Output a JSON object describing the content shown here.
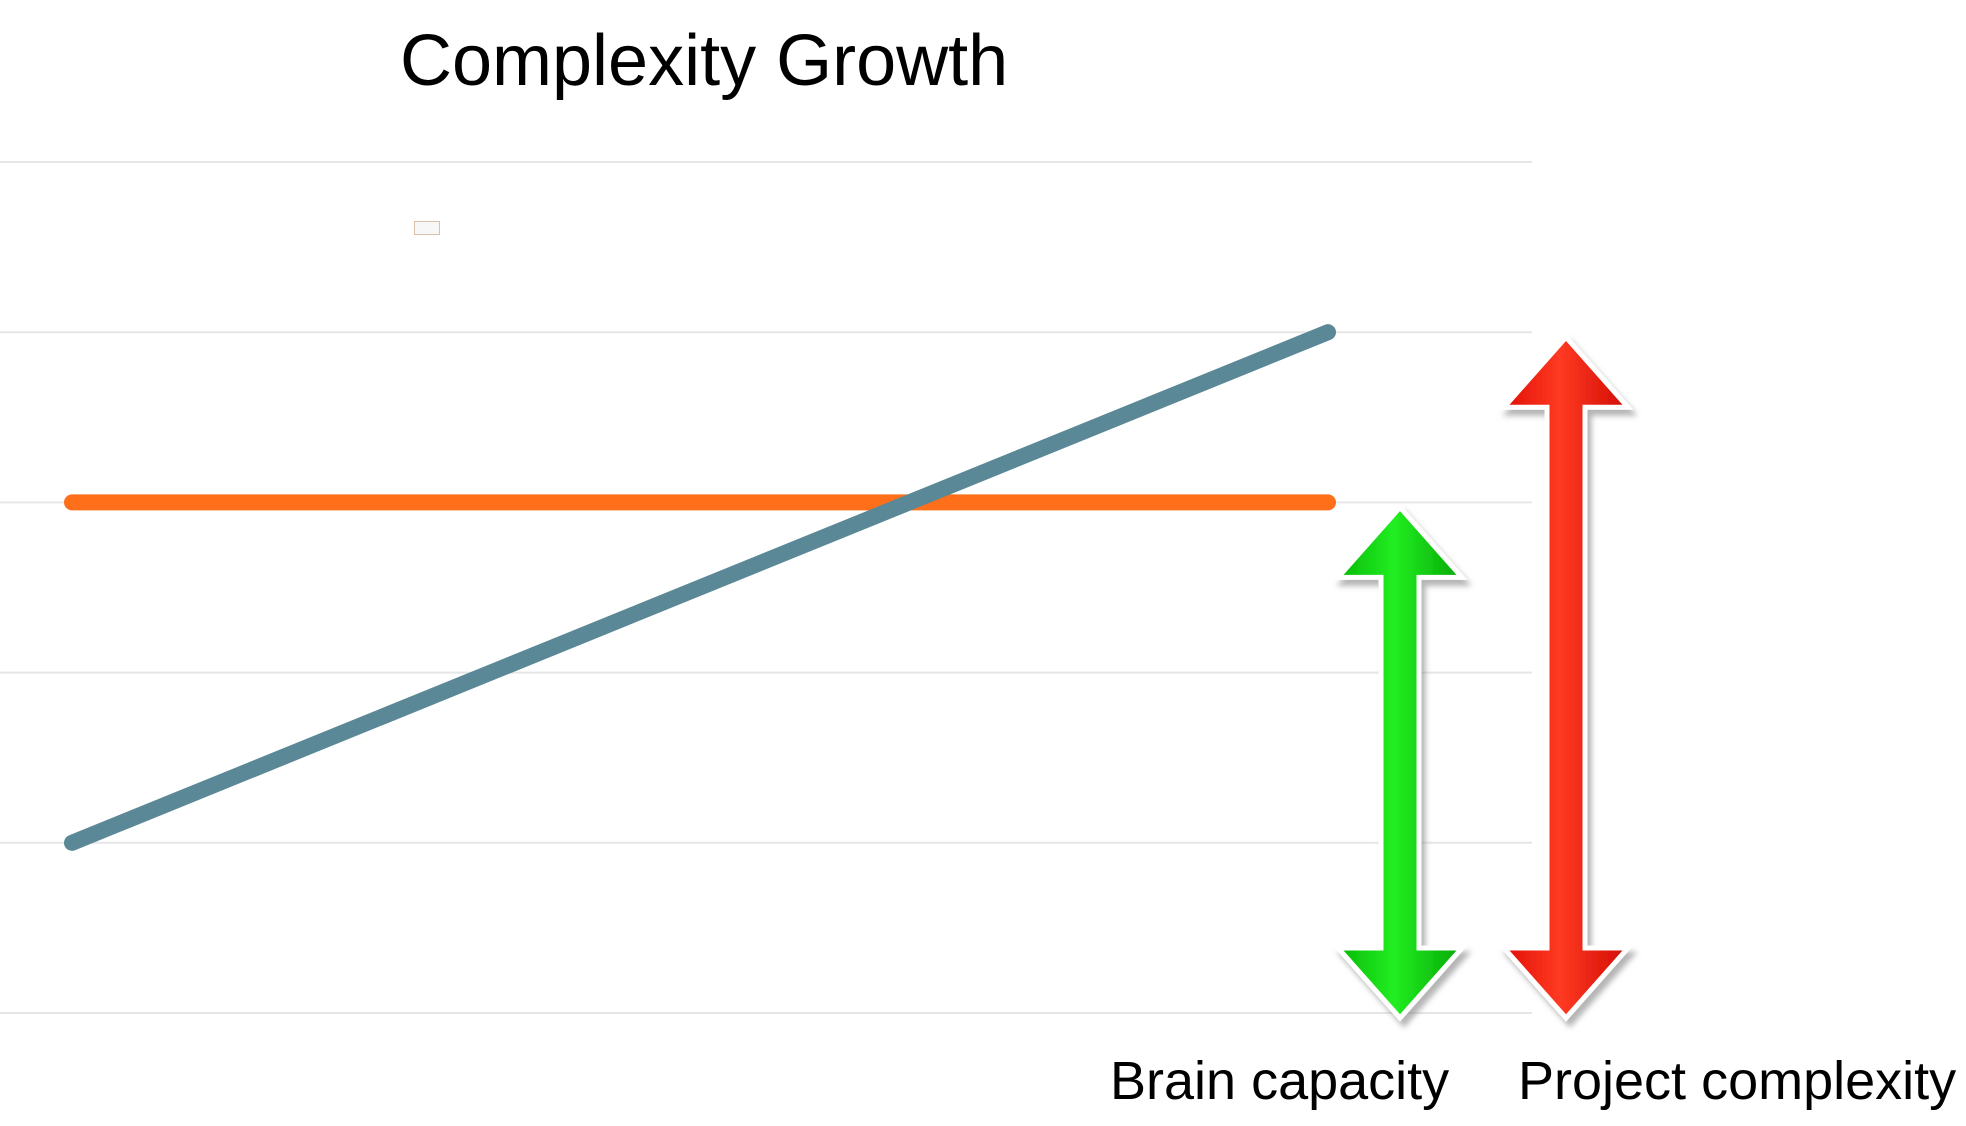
{
  "chart_data": {
    "type": "line",
    "title": "Complexity Growth",
    "xlabel": "",
    "ylabel": "",
    "grid": true,
    "gridlines": 6,
    "series": [
      {
        "values": [
          1,
          4
        ],
        "color": "#5b8896"
      },
      {
        "values": [
          3,
          3
        ],
        "color": "#ff6f1a"
      }
    ],
    "ylim": [
      0,
      5
    ]
  },
  "arrows": [
    {
      "label": "Brain capacity",
      "color": "#06cc06",
      "top": 3,
      "bottom": 0
    },
    {
      "label": "Project complexity",
      "color": "#ff1a0a",
      "top": 4,
      "bottom": 0
    }
  ]
}
